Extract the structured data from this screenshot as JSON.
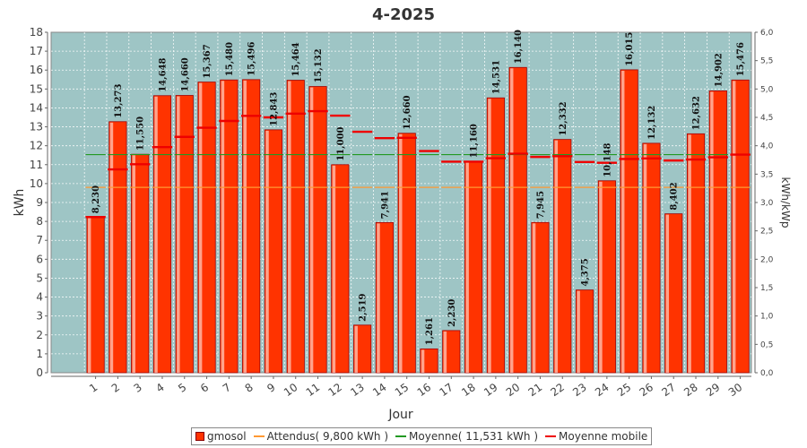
{
  "chart_data": {
    "type": "bar",
    "title": "4-2025",
    "xlabel": "Jour",
    "ylabel": "kWh",
    "y2label": "kWh/kWp",
    "ylim": [
      0,
      18
    ],
    "y2lim": [
      0,
      6.0
    ],
    "yticks": [
      "0",
      "1",
      "2",
      "3",
      "4",
      "5",
      "6",
      "7",
      "8",
      "9",
      "10",
      "11",
      "12",
      "13",
      "14",
      "15",
      "16",
      "17",
      "18"
    ],
    "y2ticks": [
      "0,0",
      "0,5",
      "1,0",
      "1,5",
      "2,0",
      "2,5",
      "3,0",
      "3,5",
      "4,0",
      "4,5",
      "5,0",
      "5,5",
      "6,0"
    ],
    "categories": [
      "1",
      "2",
      "3",
      "4",
      "5",
      "6",
      "7",
      "8",
      "9",
      "10",
      "11",
      "12",
      "13",
      "14",
      "15",
      "16",
      "17",
      "18",
      "19",
      "20",
      "21",
      "22",
      "23",
      "24",
      "25",
      "26",
      "27",
      "28",
      "29",
      "30"
    ],
    "series": [
      {
        "name": "gmosol",
        "type": "bar",
        "values": [
          8.23,
          13.273,
          11.55,
          14.648,
          14.66,
          15.367,
          15.48,
          15.496,
          12.843,
          15.464,
          15.132,
          11.0,
          2.519,
          7.941,
          12.66,
          1.261,
          2.23,
          11.16,
          14.531,
          16.14,
          7.945,
          12.332,
          4.375,
          10.148,
          16.015,
          12.132,
          8.402,
          12.632,
          14.902,
          15.476
        ],
        "labels": [
          "8,230",
          "13,273",
          "11,550",
          "14,648",
          "14,660",
          "15,367",
          "15,480",
          "15,496",
          "12,843",
          "15,464",
          "15,132",
          "11,000",
          "2,519",
          "7,941",
          "12,660",
          "1,261",
          "2,230",
          "11,160",
          "14,531",
          "16,140",
          "7,945",
          "12,332",
          "4,375",
          "10,148",
          "16,015",
          "12,132",
          "8,402",
          "12,632",
          "14,902",
          "15,476"
        ]
      },
      {
        "name": "Attendus( 9,800 kWh )",
        "type": "line",
        "value": 9.8
      },
      {
        "name": "Moyenne( 11,531 kWh )",
        "type": "line",
        "value": 11.531
      },
      {
        "name": "Moyenne mobile",
        "type": "marker",
        "values": [
          8.23,
          10.75,
          11.02,
          11.93,
          12.47,
          12.95,
          13.31,
          13.58,
          13.5,
          13.7,
          13.83,
          13.59,
          12.74,
          12.4,
          12.42,
          11.72,
          11.16,
          11.16,
          11.34,
          11.58,
          11.41,
          11.45,
          11.14,
          11.1,
          11.3,
          11.33,
          11.22,
          11.27,
          11.39,
          11.53
        ]
      }
    ],
    "legend": [
      {
        "label": "gmosol",
        "kind": "square",
        "color": "#ff3300"
      },
      {
        "label": "Attendus( 9,800 kWh )",
        "kind": "line",
        "color": "#ff9933"
      },
      {
        "label": "Moyenne( 11,531 kWh )",
        "kind": "line",
        "color": "#229922"
      },
      {
        "label": "Moyenne mobile",
        "kind": "line",
        "color": "#ee0000"
      }
    ],
    "legend_position": "bottom",
    "colors": {
      "plot_bg": "#9ec5c5",
      "bar": "#ff3300",
      "attendus": "#ff9933",
      "moyenne": "#229922",
      "mobile": "#ee0000"
    },
    "grid": true
  }
}
